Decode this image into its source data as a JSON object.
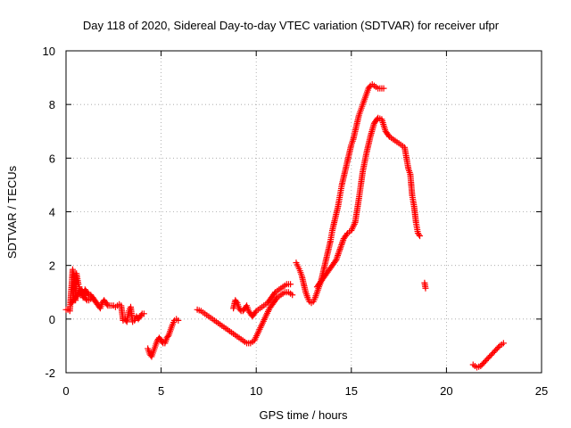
{
  "chart_data": {
    "type": "scatter",
    "title": "Day 118 of 2020, Sidereal Day-to-day VTEC variation (SDTVAR) for receiver ufpr",
    "xlabel": "GPS time / hours",
    "ylabel": "SDTVAR / TECUs",
    "xlim": [
      0,
      25
    ],
    "ylim": [
      -2,
      10
    ],
    "xticks": [
      0,
      5,
      10,
      15,
      20,
      25
    ],
    "yticks": [
      -2,
      0,
      2,
      4,
      6,
      8,
      10
    ],
    "xtick_labels": [
      "0",
      "5",
      "10",
      "15",
      "20",
      "25"
    ],
    "ytick_labels": [
      "-2",
      "0",
      "2",
      "4",
      "6",
      "8",
      "10"
    ],
    "grid": true,
    "marker": "plus",
    "color": "#ff0000",
    "series": [
      {
        "name": "segment-0",
        "x": [
          0.0,
          0.1,
          0.2,
          0.3,
          0.35,
          0.4,
          0.45,
          0.5,
          0.55,
          0.6,
          0.65,
          0.7,
          0.75,
          0.8,
          0.9,
          1.0,
          1.1,
          1.2,
          1.3,
          1.4,
          1.5,
          1.6,
          1.7,
          1.8,
          1.9,
          2.0,
          2.1,
          2.2,
          2.3,
          2.4,
          2.5,
          2.6,
          2.7,
          2.8,
          2.9,
          3.0,
          3.1,
          3.2,
          3.3,
          3.4,
          3.5,
          3.6,
          3.7,
          3.8,
          3.9,
          4.0,
          4.1
        ],
        "y": [
          0.35,
          0.35,
          0.3,
          1.3,
          1.85,
          1.6,
          1.4,
          0.7,
          1.7,
          1.5,
          1.3,
          1.2,
          0.9,
          1.0,
          0.8,
          1.1,
          1.0,
          0.9,
          0.9,
          0.8,
          0.7,
          0.6,
          0.5,
          0.4,
          0.6,
          0.7,
          0.6,
          0.5,
          0.5,
          0.5,
          0.5,
          0.45,
          0.5,
          0.55,
          0.5,
          -0.05,
          0.0,
          -0.1,
          0.3,
          0.45,
          -0.1,
          -0.05,
          0.1,
          0.0,
          0.1,
          0.2,
          0.2
        ]
      },
      {
        "name": "segment-1",
        "x": [
          0.3,
          0.4,
          0.5,
          0.6,
          0.7,
          0.8,
          0.9,
          1.0,
          1.1,
          1.2,
          1.3,
          1.4,
          1.5,
          1.6
        ],
        "y": [
          0.6,
          0.7,
          0.8,
          0.9,
          1.0,
          1.1,
          1.0,
          0.8,
          0.7,
          0.7,
          0.75,
          0.8,
          0.7,
          0.6
        ]
      },
      {
        "name": "segment-2",
        "x": [
          4.3,
          4.4,
          4.5,
          4.6,
          4.7,
          4.8,
          4.9,
          5.0,
          5.1,
          5.2,
          5.3,
          5.4,
          5.5,
          5.6,
          5.7,
          5.8,
          5.9
        ],
        "y": [
          -1.1,
          -1.3,
          -1.4,
          -1.2,
          -1.0,
          -0.8,
          -0.7,
          -0.8,
          -0.9,
          -0.9,
          -0.7,
          -0.6,
          -0.4,
          -0.2,
          -0.05,
          0.0,
          -0.05
        ]
      },
      {
        "name": "segment-3",
        "x": [
          6.9,
          7.1,
          7.3,
          7.5,
          7.7,
          7.9,
          8.1,
          8.3,
          8.5,
          8.7,
          8.9,
          9.1,
          9.3,
          9.5,
          9.7,
          9.9,
          10.1,
          10.3,
          10.5,
          10.7,
          10.9,
          11.1,
          11.3,
          11.5,
          11.7,
          11.9
        ],
        "y": [
          0.35,
          0.3,
          0.2,
          0.1,
          0.0,
          -0.1,
          -0.2,
          -0.3,
          -0.4,
          -0.5,
          -0.6,
          -0.7,
          -0.8,
          -0.9,
          -0.9,
          -0.8,
          -0.5,
          -0.2,
          0.1,
          0.4,
          0.6,
          0.8,
          0.9,
          1.0,
          1.0,
          0.9
        ]
      },
      {
        "name": "segment-4",
        "x": [
          8.8,
          8.9,
          9.0,
          9.1,
          9.2,
          9.3,
          9.4,
          9.5,
          9.6,
          9.8,
          10.0,
          10.2,
          10.4,
          10.6,
          10.8,
          11.0,
          11.2,
          11.4,
          11.6,
          11.8
        ],
        "y": [
          0.4,
          0.7,
          0.6,
          0.4,
          0.3,
          0.3,
          0.4,
          0.5,
          0.3,
          0.1,
          0.3,
          0.4,
          0.5,
          0.6,
          0.8,
          1.0,
          1.1,
          1.2,
          1.3,
          1.3
        ]
      },
      {
        "name": "segment-5",
        "x": [
          12.1,
          12.2,
          12.3,
          12.4,
          12.5,
          12.6,
          12.7,
          12.8,
          12.9,
          13.0,
          13.1,
          13.2,
          13.3,
          13.4,
          13.5,
          13.6,
          13.7,
          13.8,
          13.9,
          14.0,
          14.1,
          14.2,
          14.3,
          14.4,
          14.5,
          14.6,
          14.7,
          14.8,
          14.9,
          15.0,
          15.1,
          15.2,
          15.3,
          15.4,
          15.5,
          15.6,
          15.7,
          15.8,
          15.9,
          16.0,
          16.1,
          16.2,
          16.3,
          16.4,
          16.5,
          16.6,
          16.7
        ],
        "y": [
          2.1,
          1.95,
          1.8,
          1.6,
          1.3,
          1.0,
          0.8,
          0.65,
          0.6,
          0.65,
          0.8,
          1.0,
          1.2,
          1.4,
          1.7,
          2.0,
          2.3,
          2.6,
          2.9,
          3.3,
          3.6,
          3.9,
          4.2,
          4.6,
          5.0,
          5.3,
          5.6,
          5.9,
          6.2,
          6.5,
          6.7,
          7.0,
          7.3,
          7.6,
          7.8,
          8.0,
          8.2,
          8.4,
          8.6,
          8.7,
          8.75,
          8.7,
          8.65,
          8.6,
          8.6,
          8.6,
          8.6
        ]
      },
      {
        "name": "segment-6",
        "x": [
          13.2,
          13.4,
          13.6,
          13.8,
          14.0,
          14.2,
          14.4,
          14.6,
          14.8,
          15.0,
          15.2,
          15.4,
          15.6,
          15.8,
          16.0,
          16.2,
          16.4,
          16.6,
          16.8,
          17.0,
          17.2,
          17.4,
          17.6,
          17.8,
          18.0,
          18.1,
          18.2,
          18.3,
          18.4,
          18.5,
          18.6
        ],
        "y": [
          1.2,
          1.4,
          1.6,
          1.8,
          2.0,
          2.2,
          2.6,
          3.0,
          3.2,
          3.3,
          3.6,
          4.5,
          5.5,
          6.2,
          6.8,
          7.3,
          7.5,
          7.45,
          7.0,
          6.8,
          6.7,
          6.6,
          6.5,
          6.4,
          5.6,
          5.4,
          4.6,
          4.2,
          3.6,
          3.2,
          3.1
        ]
      },
      {
        "name": "segment-7",
        "x": [
          18.85,
          18.9
        ],
        "y": [
          1.35,
          1.15
        ]
      },
      {
        "name": "segment-8",
        "x": [
          21.4,
          21.6,
          21.8,
          22.0,
          22.2,
          22.4,
          22.6,
          22.8,
          23.0
        ],
        "y": [
          -1.7,
          -1.8,
          -1.75,
          -1.6,
          -1.45,
          -1.3,
          -1.15,
          -1.0,
          -0.9
        ]
      }
    ]
  }
}
